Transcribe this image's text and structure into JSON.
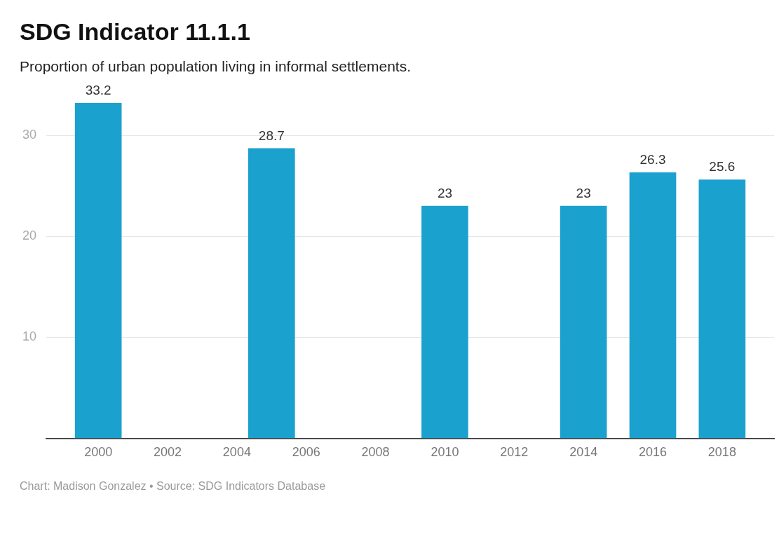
{
  "chart_data": {
    "type": "bar",
    "title": "SDG Indicator 11.1.1",
    "subtitle": "Proportion of urban population living in informal settlements.",
    "x": [
      2000,
      2005,
      2010,
      2014,
      2016,
      2018
    ],
    "values": [
      33.2,
      28.7,
      23,
      23,
      26.3,
      25.6
    ],
    "color": "#1ba1cd",
    "xlim": [
      1998.5,
      2019.5
    ],
    "xticks": [
      2000,
      2002,
      2004,
      2006,
      2008,
      2010,
      2012,
      2014,
      2016,
      2018
    ],
    "ylim": [
      0,
      33.2
    ],
    "yticks": [
      {
        "value": 0,
        "label": null
      },
      10,
      20,
      30
    ],
    "grid": "y",
    "data_labels": true,
    "annotations": [
      "Chart: Madison Gonzalez • Source: SDG Indicators Database"
    ]
  }
}
